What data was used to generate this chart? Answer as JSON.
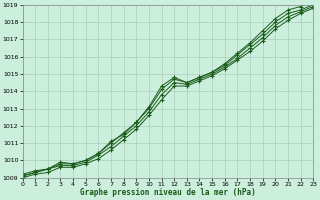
{
  "title": "Graphe pression niveau de la mer (hPa)",
  "x_values": [
    0,
    1,
    2,
    3,
    4,
    5,
    6,
    7,
    8,
    9,
    10,
    11,
    12,
    13,
    14,
    15,
    16,
    17,
    18,
    19,
    20,
    21,
    22,
    23
  ],
  "series": [
    [
      1009.2,
      1009.4,
      1009.5,
      1009.9,
      1009.8,
      1010.0,
      1010.4,
      1011.1,
      1011.5,
      1012.2,
      1013.1,
      1014.3,
      1014.8,
      1014.5,
      1014.8,
      1015.1,
      1015.6,
      1016.2,
      1016.8,
      1017.5,
      1018.2,
      1018.7,
      1018.9,
      1019.3
    ],
    [
      1009.1,
      1009.3,
      1009.5,
      1009.8,
      1009.8,
      1010.0,
      1010.4,
      1011.0,
      1011.6,
      1012.2,
      1013.0,
      1014.1,
      1014.7,
      1014.5,
      1014.8,
      1015.1,
      1015.5,
      1016.1,
      1016.7,
      1017.3,
      1018.0,
      1018.5,
      1018.7,
      1019.0
    ],
    [
      1009.1,
      1009.3,
      1009.5,
      1009.7,
      1009.7,
      1009.9,
      1010.3,
      1010.8,
      1011.4,
      1012.0,
      1012.8,
      1013.8,
      1014.5,
      1014.4,
      1014.7,
      1015.0,
      1015.4,
      1015.9,
      1016.5,
      1017.1,
      1017.8,
      1018.3,
      1018.6,
      1018.9
    ],
    [
      1009.0,
      1009.2,
      1009.3,
      1009.6,
      1009.6,
      1009.8,
      1010.1,
      1010.6,
      1011.2,
      1011.8,
      1012.6,
      1013.5,
      1014.3,
      1014.3,
      1014.6,
      1014.9,
      1015.3,
      1015.8,
      1016.3,
      1016.9,
      1017.6,
      1018.1,
      1018.5,
      1018.8
    ]
  ],
  "line_color": "#1a5c1a",
  "marker_color": "#1a5c1a",
  "bg_color": "#cceedd",
  "grid_color": "#aaccbb",
  "ylim": [
    1009,
    1019
  ],
  "yticks": [
    1009,
    1010,
    1011,
    1012,
    1013,
    1014,
    1015,
    1016,
    1017,
    1018,
    1019
  ],
  "xlim": [
    0,
    23
  ],
  "xticks": [
    0,
    1,
    2,
    3,
    4,
    5,
    6,
    7,
    8,
    9,
    10,
    11,
    12,
    13,
    14,
    15,
    16,
    17,
    18,
    19,
    20,
    21,
    22,
    23
  ]
}
